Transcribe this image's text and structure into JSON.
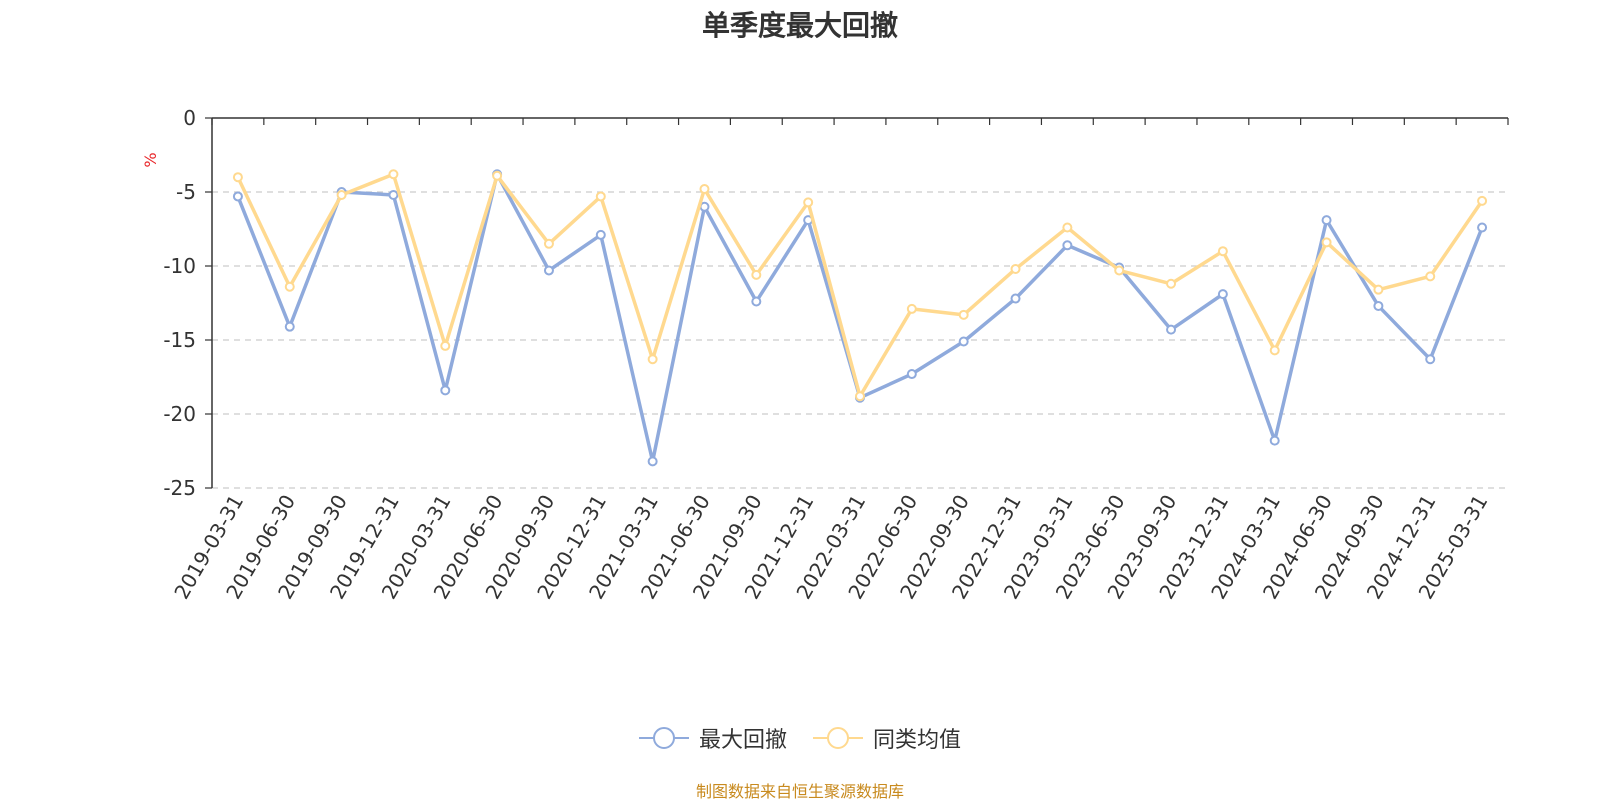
{
  "chart_data": {
    "type": "line",
    "title": "单季度最大回撤",
    "ylabel": "%",
    "xlabel": "",
    "ylim": [
      -25,
      0
    ],
    "yticks": [
      0,
      -5,
      -10,
      -15,
      -20,
      -25
    ],
    "grid": true,
    "legend_position": "bottom",
    "categories": [
      "2019-03-31",
      "2019-06-30",
      "2019-09-30",
      "2019-12-31",
      "2020-03-31",
      "2020-06-30",
      "2020-09-30",
      "2020-12-31",
      "2021-03-31",
      "2021-06-30",
      "2021-09-30",
      "2021-12-31",
      "2022-03-31",
      "2022-06-30",
      "2022-09-30",
      "2022-12-31",
      "2023-03-31",
      "2023-06-30",
      "2023-09-30",
      "2023-12-31",
      "2024-03-31",
      "2024-06-30",
      "2024-09-30",
      "2024-12-31",
      "2025-03-31"
    ],
    "series": [
      {
        "name": "最大回撤",
        "color": "#8faadc",
        "values": [
          -5.3,
          -14.1,
          -5.0,
          -5.2,
          -18.4,
          -3.8,
          -10.3,
          -7.9,
          -23.2,
          -6.0,
          -12.4,
          -6.9,
          -18.9,
          -17.3,
          -15.1,
          -12.2,
          -8.6,
          -10.1,
          -14.3,
          -11.9,
          -21.8,
          -6.9,
          -12.7,
          -16.3,
          -7.4
        ]
      },
      {
        "name": "同类均值",
        "color": "#ffd98f",
        "values": [
          -4.0,
          -11.4,
          -5.2,
          -3.8,
          -15.4,
          -3.9,
          -8.5,
          -5.3,
          -16.3,
          -4.8,
          -10.6,
          -5.7,
          -18.8,
          -12.9,
          -13.3,
          -10.2,
          -7.4,
          -10.3,
          -11.2,
          -9.0,
          -15.7,
          -8.4,
          -11.6,
          -10.7,
          -5.6
        ]
      }
    ]
  },
  "footer_note": "制图数据来自恒生聚源数据库"
}
